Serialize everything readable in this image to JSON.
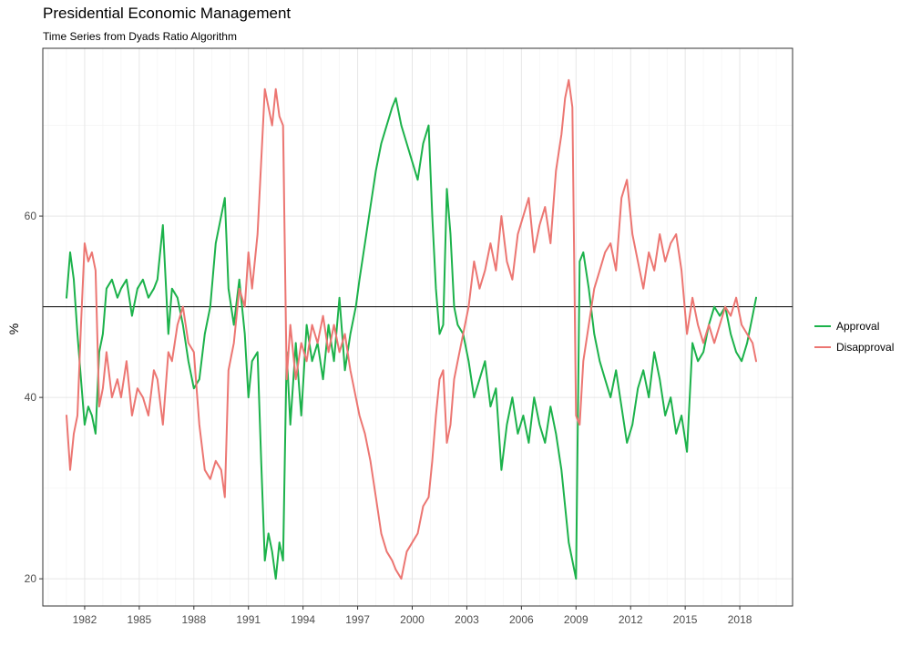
{
  "chart_data": {
    "type": "line",
    "title": "Presidential Economic Management",
    "subtitle": "Time Series from Dyads Ratio Algorithm",
    "xlabel": "",
    "ylabel": "%",
    "xlim": [
      1979.7,
      2020.9
    ],
    "ylim": [
      17.0,
      78.5
    ],
    "x_ticks": [
      1982,
      1985,
      1988,
      1991,
      1994,
      1997,
      2000,
      2003,
      2006,
      2009,
      2012,
      2015,
      2018
    ],
    "x_tick_labels": [
      "1982",
      "1985",
      "1988",
      "1991",
      "1994",
      "1997",
      "2000",
      "2003",
      "2006",
      "2009",
      "2012",
      "2015",
      "2018"
    ],
    "y_ticks": [
      20,
      40,
      60
    ],
    "y_tick_labels": [
      "20",
      "40",
      "60"
    ],
    "reference_line": 50,
    "grid": true,
    "legend_position": "right",
    "series": [
      {
        "name": "Approval",
        "color": "#1cb24b",
        "x": [
          1981.0,
          1981.2,
          1981.4,
          1981.6,
          1981.8,
          1982.0,
          1982.2,
          1982.4,
          1982.6,
          1982.8,
          1983.0,
          1983.2,
          1983.5,
          1983.8,
          1984.0,
          1984.3,
          1984.6,
          1984.9,
          1985.2,
          1985.5,
          1985.8,
          1986.0,
          1986.3,
          1986.6,
          1986.8,
          1987.1,
          1987.4,
          1987.7,
          1988.0,
          1988.3,
          1988.6,
          1988.9,
          1989.2,
          1989.5,
          1989.7,
          1989.9,
          1990.2,
          1990.5,
          1990.8,
          1991.0,
          1991.2,
          1991.5,
          1991.7,
          1991.9,
          1992.1,
          1992.3,
          1992.5,
          1992.7,
          1992.9,
          1993.1,
          1993.3,
          1993.6,
          1993.9,
          1994.2,
          1994.5,
          1994.8,
          1995.1,
          1995.4,
          1995.7,
          1996.0,
          1996.3,
          1996.6,
          1996.9,
          1997.1,
          1997.4,
          1997.7,
          1998.0,
          1998.3,
          1998.6,
          1998.9,
          1999.1,
          1999.4,
          1999.7,
          2000.0,
          2000.3,
          2000.6,
          2000.9,
          2001.1,
          2001.3,
          2001.5,
          2001.7,
          2001.9,
          2002.1,
          2002.3,
          2002.5,
          2002.8,
          2003.1,
          2003.4,
          2003.7,
          2004.0,
          2004.3,
          2004.6,
          2004.9,
          2005.2,
          2005.5,
          2005.8,
          2006.1,
          2006.4,
          2006.7,
          2007.0,
          2007.3,
          2007.6,
          2007.9,
          2008.2,
          2008.4,
          2008.6,
          2008.8,
          2009.0,
          2009.2,
          2009.4,
          2009.7,
          2010.0,
          2010.3,
          2010.6,
          2010.9,
          2011.2,
          2011.5,
          2011.8,
          2012.1,
          2012.4,
          2012.7,
          2013.0,
          2013.3,
          2013.6,
          2013.9,
          2014.2,
          2014.5,
          2014.8,
          2015.1,
          2015.4,
          2015.7,
          2016.0,
          2016.3,
          2016.6,
          2016.9,
          2017.2,
          2017.5,
          2017.8,
          2018.1,
          2018.4,
          2018.7,
          2018.9
        ],
        "values": [
          51,
          56,
          53,
          47,
          42,
          37,
          39,
          38,
          36,
          45,
          47,
          52,
          53,
          51,
          52,
          53,
          49,
          52,
          53,
          51,
          52,
          53,
          59,
          47,
          52,
          51,
          48,
          44,
          41,
          42,
          47,
          50,
          57,
          60,
          62,
          52,
          48,
          53,
          47,
          40,
          44,
          45,
          33,
          22,
          25,
          23,
          20,
          24,
          22,
          45,
          37,
          46,
          38,
          48,
          44,
          46,
          42,
          48,
          44,
          51,
          43,
          47,
          50,
          53,
          57,
          61,
          65,
          68,
          70,
          72,
          73,
          70,
          68,
          66,
          64,
          68,
          70,
          60,
          52,
          47,
          48,
          63,
          58,
          50,
          48,
          47,
          44,
          40,
          42,
          44,
          39,
          41,
          32,
          37,
          40,
          36,
          38,
          35,
          40,
          37,
          35,
          39,
          36,
          32,
          28,
          24,
          22,
          20,
          55,
          56,
          52,
          47,
          44,
          42,
          40,
          43,
          39,
          35,
          37,
          41,
          43,
          40,
          45,
          42,
          38,
          40,
          36,
          38,
          34,
          46,
          44,
          45,
          48,
          50,
          49,
          50,
          47,
          45,
          44,
          46,
          49,
          51
        ]
      },
      {
        "name": "Disapproval",
        "color": "#ec7672",
        "x": [
          1981.0,
          1981.2,
          1981.4,
          1981.6,
          1981.8,
          1982.0,
          1982.2,
          1982.4,
          1982.6,
          1982.8,
          1983.0,
          1983.2,
          1983.5,
          1983.8,
          1984.0,
          1984.3,
          1984.6,
          1984.9,
          1985.2,
          1985.5,
          1985.8,
          1986.0,
          1986.3,
          1986.6,
          1986.8,
          1987.1,
          1987.4,
          1987.7,
          1988.0,
          1988.3,
          1988.6,
          1988.9,
          1989.2,
          1989.5,
          1989.7,
          1989.9,
          1990.2,
          1990.5,
          1990.8,
          1991.0,
          1991.2,
          1991.5,
          1991.7,
          1991.9,
          1992.1,
          1992.3,
          1992.5,
          1992.7,
          1992.9,
          1993.1,
          1993.3,
          1993.6,
          1993.9,
          1994.2,
          1994.5,
          1994.8,
          1995.1,
          1995.4,
          1995.7,
          1996.0,
          1996.3,
          1996.6,
          1996.9,
          1997.1,
          1997.4,
          1997.7,
          1998.0,
          1998.3,
          1998.6,
          1998.9,
          1999.1,
          1999.4,
          1999.7,
          2000.0,
          2000.3,
          2000.6,
          2000.9,
          2001.1,
          2001.3,
          2001.5,
          2001.7,
          2001.9,
          2002.1,
          2002.3,
          2002.5,
          2002.8,
          2003.1,
          2003.4,
          2003.7,
          2004.0,
          2004.3,
          2004.6,
          2004.9,
          2005.2,
          2005.5,
          2005.8,
          2006.1,
          2006.4,
          2006.7,
          2007.0,
          2007.3,
          2007.6,
          2007.9,
          2008.2,
          2008.4,
          2008.6,
          2008.8,
          2009.0,
          2009.2,
          2009.4,
          2009.7,
          2010.0,
          2010.3,
          2010.6,
          2010.9,
          2011.2,
          2011.5,
          2011.8,
          2012.1,
          2012.4,
          2012.7,
          2013.0,
          2013.3,
          2013.6,
          2013.9,
          2014.2,
          2014.5,
          2014.8,
          2015.1,
          2015.4,
          2015.7,
          2016.0,
          2016.3,
          2016.6,
          2016.9,
          2017.2,
          2017.5,
          2017.8,
          2018.1,
          2018.4,
          2018.7,
          2018.9
        ],
        "values": [
          38,
          32,
          36,
          38,
          48,
          57,
          55,
          56,
          54,
          39,
          41,
          45,
          40,
          42,
          40,
          44,
          38,
          41,
          40,
          38,
          43,
          42,
          37,
          45,
          44,
          48,
          50,
          46,
          45,
          37,
          32,
          31,
          33,
          32,
          29,
          43,
          46,
          52,
          50,
          56,
          52,
          58,
          66,
          74,
          72,
          70,
          74,
          71,
          70,
          42,
          48,
          42,
          46,
          44,
          48,
          46,
          49,
          45,
          48,
          45,
          47,
          43,
          40,
          38,
          36,
          33,
          29,
          25,
          23,
          22,
          21,
          20,
          23,
          24,
          25,
          28,
          29,
          33,
          38,
          42,
          43,
          35,
          37,
          42,
          44,
          47,
          50,
          55,
          52,
          54,
          57,
          54,
          60,
          55,
          53,
          58,
          60,
          62,
          56,
          59,
          61,
          57,
          65,
          69,
          73,
          75,
          72,
          38,
          37,
          44,
          48,
          52,
          54,
          56,
          57,
          54,
          62,
          64,
          58,
          55,
          52,
          56,
          54,
          58,
          55,
          57,
          58,
          54,
          47,
          51,
          48,
          46,
          48,
          46,
          48,
          50,
          49,
          51,
          48,
          47,
          46,
          44
        ]
      }
    ]
  }
}
